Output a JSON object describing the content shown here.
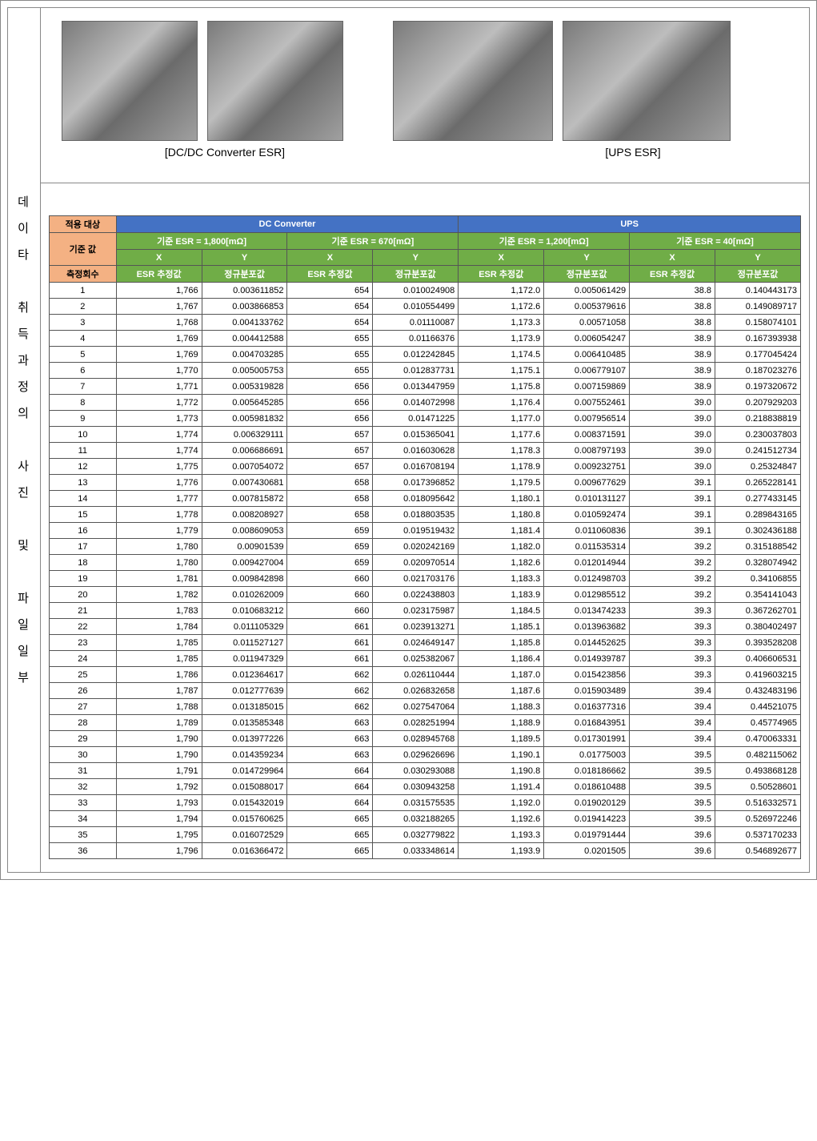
{
  "sidebar_text": "데\n이\n타\n\n취\n득\n과\n정\n의\n\n사\n진\n\n및\n\n파\n일\n일\n부",
  "captions": {
    "left": "[DC/DC  Converter  ESR]",
    "right": "[UPS    ESR]"
  },
  "header": {
    "target_label": "적용 대상",
    "ref_label": "기준 값",
    "count_label": "측정회수",
    "groups": [
      {
        "name": "DC Converter",
        "subs": [
          {
            "ref": "기준 ESR = 1,800[mΩ]",
            "x": "X",
            "y": "Y",
            "esr": "ESR 추정값",
            "dist": "정규분포값"
          },
          {
            "ref": "기준 ESR = 670[mΩ]",
            "x": "X",
            "y": "Y",
            "esr": "ESR 추정값",
            "dist": "정규분포값"
          }
        ]
      },
      {
        "name": "UPS",
        "subs": [
          {
            "ref": "기준 ESR = 1,200[mΩ]",
            "x": "X",
            "y": "Y",
            "esr": "ESR 추정값",
            "dist": "정규분포값"
          },
          {
            "ref": "기준 ESR = 40[mΩ]",
            "x": "X",
            "y": "Y",
            "esr": "ESR 추정값",
            "dist": "정규분포값"
          }
        ]
      }
    ]
  },
  "colors": {
    "orange": "#f4b183",
    "blue": "#4472c4",
    "green": "#70ad47",
    "border": "#555",
    "photo_bg": "#888"
  },
  "rows": [
    [
      1,
      "1,766",
      "0.003611852",
      "654",
      "0.010024908",
      "1,172.0",
      "0.005061429",
      "38.8",
      "0.140443173"
    ],
    [
      2,
      "1,767",
      "0.003866853",
      "654",
      "0.010554499",
      "1,172.6",
      "0.005379616",
      "38.8",
      "0.149089717"
    ],
    [
      3,
      "1,768",
      "0.004133762",
      "654",
      "0.01110087",
      "1,173.3",
      "0.00571058",
      "38.8",
      "0.158074101"
    ],
    [
      4,
      "1,769",
      "0.004412588",
      "655",
      "0.01166376",
      "1,173.9",
      "0.006054247",
      "38.9",
      "0.167393938"
    ],
    [
      5,
      "1,769",
      "0.004703285",
      "655",
      "0.012242845",
      "1,174.5",
      "0.006410485",
      "38.9",
      "0.177045424"
    ],
    [
      6,
      "1,770",
      "0.005005753",
      "655",
      "0.012837731",
      "1,175.1",
      "0.006779107",
      "38.9",
      "0.187023276"
    ],
    [
      7,
      "1,771",
      "0.005319828",
      "656",
      "0.013447959",
      "1,175.8",
      "0.007159869",
      "38.9",
      "0.197320672"
    ],
    [
      8,
      "1,772",
      "0.005645285",
      "656",
      "0.014072998",
      "1,176.4",
      "0.007552461",
      "39.0",
      "0.207929203"
    ],
    [
      9,
      "1,773",
      "0.005981832",
      "656",
      "0.01471225",
      "1,177.0",
      "0.007956514",
      "39.0",
      "0.218838819"
    ],
    [
      10,
      "1,774",
      "0.006329111",
      "657",
      "0.015365041",
      "1,177.6",
      "0.008371591",
      "39.0",
      "0.230037803"
    ],
    [
      11,
      "1,774",
      "0.006686691",
      "657",
      "0.016030628",
      "1,178.3",
      "0.008797193",
      "39.0",
      "0.241512734"
    ],
    [
      12,
      "1,775",
      "0.007054072",
      "657",
      "0.016708194",
      "1,178.9",
      "0.009232751",
      "39.0",
      "0.25324847"
    ],
    [
      13,
      "1,776",
      "0.007430681",
      "658",
      "0.017396852",
      "1,179.5",
      "0.009677629",
      "39.1",
      "0.265228141"
    ],
    [
      14,
      "1,777",
      "0.007815872",
      "658",
      "0.018095642",
      "1,180.1",
      "0.010131127",
      "39.1",
      "0.277433145"
    ],
    [
      15,
      "1,778",
      "0.008208927",
      "658",
      "0.018803535",
      "1,180.8",
      "0.010592474",
      "39.1",
      "0.289843165"
    ],
    [
      16,
      "1,779",
      "0.008609053",
      "659",
      "0.019519432",
      "1,181.4",
      "0.011060836",
      "39.1",
      "0.302436188"
    ],
    [
      17,
      "1,780",
      "0.00901539",
      "659",
      "0.020242169",
      "1,182.0",
      "0.011535314",
      "39.2",
      "0.315188542"
    ],
    [
      18,
      "1,780",
      "0.009427004",
      "659",
      "0.020970514",
      "1,182.6",
      "0.012014944",
      "39.2",
      "0.328074942"
    ],
    [
      19,
      "1,781",
      "0.009842898",
      "660",
      "0.021703176",
      "1,183.3",
      "0.012498703",
      "39.2",
      "0.34106855"
    ],
    [
      20,
      "1,782",
      "0.010262009",
      "660",
      "0.022438803",
      "1,183.9",
      "0.012985512",
      "39.2",
      "0.354141043"
    ],
    [
      21,
      "1,783",
      "0.010683212",
      "660",
      "0.023175987",
      "1,184.5",
      "0.013474233",
      "39.3",
      "0.367262701"
    ],
    [
      22,
      "1,784",
      "0.011105329",
      "661",
      "0.023913271",
      "1,185.1",
      "0.013963682",
      "39.3",
      "0.380402497"
    ],
    [
      23,
      "1,785",
      "0.011527127",
      "661",
      "0.024649147",
      "1,185.8",
      "0.014452625",
      "39.3",
      "0.393528208"
    ],
    [
      24,
      "1,785",
      "0.011947329",
      "661",
      "0.025382067",
      "1,186.4",
      "0.014939787",
      "39.3",
      "0.406606531"
    ],
    [
      25,
      "1,786",
      "0.012364617",
      "662",
      "0.026110444",
      "1,187.0",
      "0.015423856",
      "39.3",
      "0.419603215"
    ],
    [
      26,
      "1,787",
      "0.012777639",
      "662",
      "0.026832658",
      "1,187.6",
      "0.015903489",
      "39.4",
      "0.432483196"
    ],
    [
      27,
      "1,788",
      "0.013185015",
      "662",
      "0.027547064",
      "1,188.3",
      "0.016377316",
      "39.4",
      "0.44521075"
    ],
    [
      28,
      "1,789",
      "0.013585348",
      "663",
      "0.028251994",
      "1,188.9",
      "0.016843951",
      "39.4",
      "0.45774965"
    ],
    [
      29,
      "1,790",
      "0.013977226",
      "663",
      "0.028945768",
      "1,189.5",
      "0.017301991",
      "39.4",
      "0.470063331"
    ],
    [
      30,
      "1,790",
      "0.014359234",
      "663",
      "0.029626696",
      "1,190.1",
      "0.01775003",
      "39.5",
      "0.482115062"
    ],
    [
      31,
      "1,791",
      "0.014729964",
      "664",
      "0.030293088",
      "1,190.8",
      "0.018186662",
      "39.5",
      "0.493868128"
    ],
    [
      32,
      "1,792",
      "0.015088017",
      "664",
      "0.030943258",
      "1,191.4",
      "0.018610488",
      "39.5",
      "0.50528601"
    ],
    [
      33,
      "1,793",
      "0.015432019",
      "664",
      "0.031575535",
      "1,192.0",
      "0.019020129",
      "39.5",
      "0.516332571"
    ],
    [
      34,
      "1,794",
      "0.015760625",
      "665",
      "0.032188265",
      "1,192.6",
      "0.019414223",
      "39.5",
      "0.526972246"
    ],
    [
      35,
      "1,795",
      "0.016072529",
      "665",
      "0.032779822",
      "1,193.3",
      "0.019791444",
      "39.6",
      "0.537170233"
    ],
    [
      36,
      "1,796",
      "0.016366472",
      "665",
      "0.033348614",
      "1,193.9",
      "0.0201505",
      "39.6",
      "0.546892677"
    ]
  ]
}
